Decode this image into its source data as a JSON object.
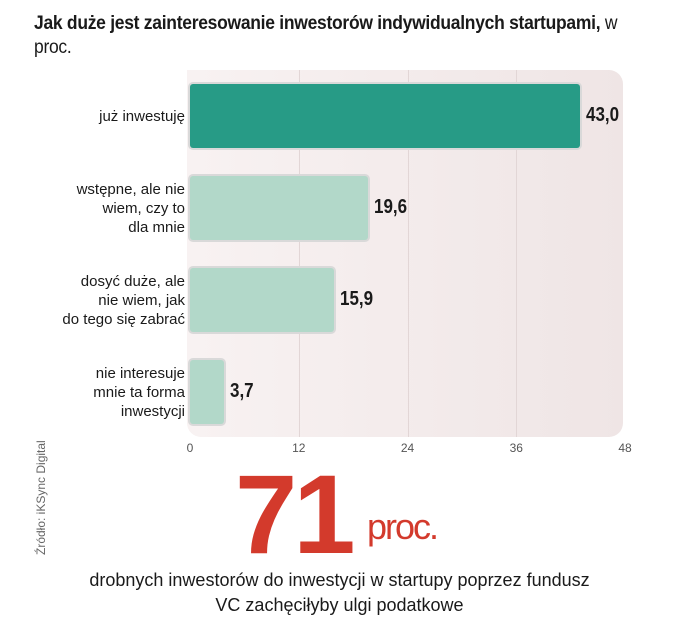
{
  "chart_data": {
    "type": "bar",
    "title": "Jak duże jest zainteresowanie inwestorów indywidualnych startupami,",
    "subtitle": "w proc.",
    "categories": [
      "już inwestuję",
      "wstępne, ale nie wiem, czy to dla mnie",
      "dosyć duże, ale nie wiem, jak do tego się zabrać",
      "nie interesuje mnie ta forma inwestycji"
    ],
    "category_lines": [
      [
        "już inwestuję"
      ],
      [
        "wstępne, ale nie",
        "wiem, czy to",
        "dla mnie"
      ],
      [
        "dosyć duże, ale",
        "nie wiem, jak",
        "do tego się zabrać"
      ],
      [
        "nie interesuje",
        "mnie ta forma",
        "inwestycji"
      ]
    ],
    "values": [
      43.0,
      19.6,
      15.9,
      3.7
    ],
    "value_labels": [
      "43,0",
      "19,6",
      "15,9",
      "3,7"
    ],
    "xlim": [
      0,
      48
    ],
    "xticks": [
      "0",
      "12",
      "24",
      "36",
      "48"
    ],
    "colors": [
      "#279b86",
      "#b2d8c9",
      "#b2d8c9",
      "#b2d8c9"
    ],
    "grid": true
  },
  "source": "Źródło: iKSync Digital",
  "highlight": {
    "number": "71",
    "unit": "proc.",
    "text_line1": "drobnych inwestorów do inwestycji w startupy poprzez fundusz",
    "text_line2": "VC zachęciłyby ulgi podatkowe"
  }
}
